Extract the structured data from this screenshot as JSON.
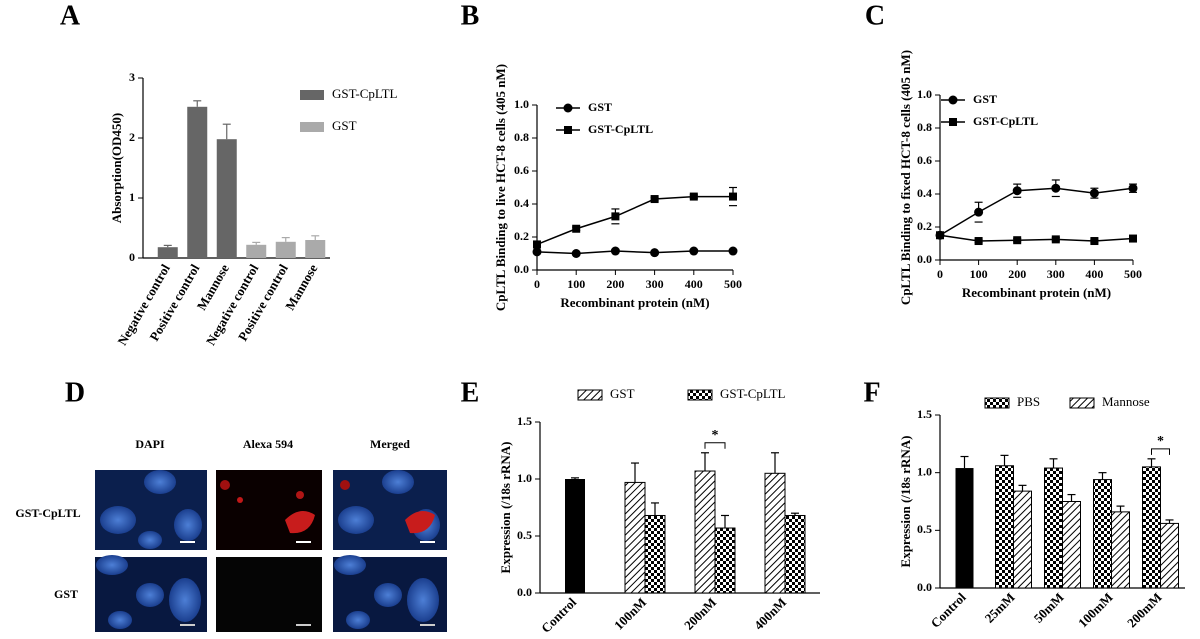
{
  "chart_data": [
    {
      "type": "bar",
      "panel": "A",
      "y_label": "Absorption(OD450)",
      "categories": [
        "Negative control",
        "Positive control",
        "Mannose",
        "Negative control",
        "Positive control",
        "Mannose"
      ],
      "series": [
        {
          "name": "GST-CpLTL",
          "color": "#666666",
          "values": [
            0.18,
            2.52,
            1.98,
            null,
            null,
            null
          ],
          "errors": [
            0.03,
            0.1,
            0.25,
            null,
            null,
            null
          ]
        },
        {
          "name": "GST",
          "color": "#aaaaaa",
          "values": [
            null,
            null,
            null,
            0.22,
            0.27,
            0.3
          ],
          "errors": [
            null,
            null,
            null,
            0.04,
            0.07,
            0.07
          ]
        }
      ],
      "ylim": [
        0,
        3
      ],
      "yticks": [
        0,
        1,
        2,
        3
      ]
    },
    {
      "type": "line",
      "panel": "B",
      "x_label": "Recombinant protein (nM)",
      "y_label": "CpLTL Binding to live HCT-8 cells (405 nM)",
      "x": [
        0,
        100,
        200,
        300,
        400,
        500
      ],
      "series": [
        {
          "name": "GST",
          "color": "#000000",
          "marker": "circle",
          "values": [
            0.11,
            0.1,
            0.115,
            0.105,
            0.115,
            0.115
          ],
          "errors": [
            0.005,
            0.005,
            0.01,
            0.005,
            0.005,
            0.005
          ]
        },
        {
          "name": "GST-CpLTL",
          "color": "#000000",
          "marker": "square",
          "values": [
            0.155,
            0.25,
            0.325,
            0.43,
            0.445,
            0.445
          ],
          "errors": [
            0.01,
            0.01,
            0.045,
            0.01,
            0.01,
            0.055
          ]
        }
      ],
      "xlim": [
        0,
        500
      ],
      "xticks": [
        0,
        100,
        200,
        300,
        400,
        500
      ],
      "ylim": [
        0,
        1
      ],
      "yticks": [
        {
          "value": 0,
          "label": "0.0"
        },
        0.2,
        0.4,
        0.6,
        0.8,
        {
          "value": 1,
          "label": "1.0"
        }
      ]
    },
    {
      "type": "line",
      "panel": "C",
      "x_label": "Recombinant protein (nM)",
      "y_label": "CpLTL Binding to fixed HCT-8 cells (405 nM)",
      "x": [
        0,
        100,
        200,
        300,
        400,
        500
      ],
      "series": [
        {
          "name": "GST",
          "color": "#000000",
          "marker": "circle",
          "values": [
            0.15,
            0.29,
            0.42,
            0.435,
            0.405,
            0.435
          ],
          "errors": [
            0.01,
            0.06,
            0.04,
            0.05,
            0.03,
            0.025
          ]
        },
        {
          "name": "GST-CpLTL",
          "color": "#000000",
          "marker": "square",
          "values": [
            0.15,
            0.115,
            0.12,
            0.125,
            0.115,
            0.13
          ],
          "errors": [
            0.01,
            0.01,
            0.01,
            0.01,
            0.01,
            0.01
          ]
        }
      ],
      "xlim": [
        0,
        500
      ],
      "xticks": [
        0,
        100,
        200,
        300,
        400,
        500
      ],
      "ylim": [
        0,
        1
      ],
      "yticks": [
        {
          "value": 0,
          "label": "0.0"
        },
        0.2,
        0.4,
        0.6,
        0.8,
        {
          "value": 1,
          "label": "1.0"
        }
      ]
    },
    {
      "type": "bar",
      "panel": "E",
      "y_label": "Expression (/18s rRNA)",
      "categories": [
        "Control",
        "100nM",
        "200nM",
        "400nM"
      ],
      "series": [
        {
          "color": "#000000",
          "values": [
            1.0,
            null,
            null,
            null
          ],
          "errors": [
            0.01,
            null,
            null,
            null
          ]
        },
        {
          "name": "GST",
          "color": "#000000",
          "pattern": "hatch",
          "values": [
            null,
            0.97,
            1.07,
            1.05
          ],
          "errors": [
            null,
            0.17,
            0.16,
            0.18
          ]
        },
        {
          "name": "GST-CpLTL",
          "color": "#000000",
          "pattern": "checker",
          "values": [
            null,
            0.68,
            0.57,
            0.68
          ],
          "errors": [
            null,
            0.11,
            0.11,
            0.02
          ]
        }
      ],
      "annotations": [
        {
          "text": "*",
          "category": "200nM"
        }
      ],
      "ylim": [
        0,
        1.5
      ],
      "yticks": [
        {
          "value": 0,
          "label": "0.0"
        },
        0.5,
        {
          "value": 1,
          "label": "1.0"
        },
        1.5
      ]
    },
    {
      "type": "bar",
      "panel": "F",
      "y_label": "Expression (/18s rRNA)",
      "categories": [
        "Control",
        "25mM",
        "50mM",
        "100mM",
        "200mM"
      ],
      "series": [
        {
          "color": "#000000",
          "values": [
            1.04,
            null,
            null,
            null,
            null
          ],
          "errors": [
            0.1,
            null,
            null,
            null,
            null
          ]
        },
        {
          "name": "PBS",
          "color": "#000000",
          "pattern": "checker",
          "values": [
            null,
            1.06,
            1.04,
            0.94,
            1.05
          ],
          "errors": [
            null,
            0.09,
            0.08,
            0.06,
            0.07
          ]
        },
        {
          "name": "Mannose",
          "color": "#000000",
          "pattern": "hatch",
          "values": [
            null,
            0.84,
            0.75,
            0.66,
            0.56
          ],
          "errors": [
            null,
            0.05,
            0.06,
            0.05,
            0.03
          ]
        }
      ],
      "annotations": [
        {
          "text": "*",
          "category": "200mM"
        }
      ],
      "ylim": [
        0,
        1.5
      ],
      "yticks": [
        {
          "value": 0,
          "label": "0.0"
        },
        0.5,
        {
          "value": 1,
          "label": "1.0"
        },
        1.5
      ]
    }
  ],
  "figure_d": {
    "panel": "D",
    "columns": [
      "DAPI",
      "Alexa 594",
      "Merged"
    ],
    "rows": [
      "GST-CpLTL",
      "GST"
    ]
  }
}
